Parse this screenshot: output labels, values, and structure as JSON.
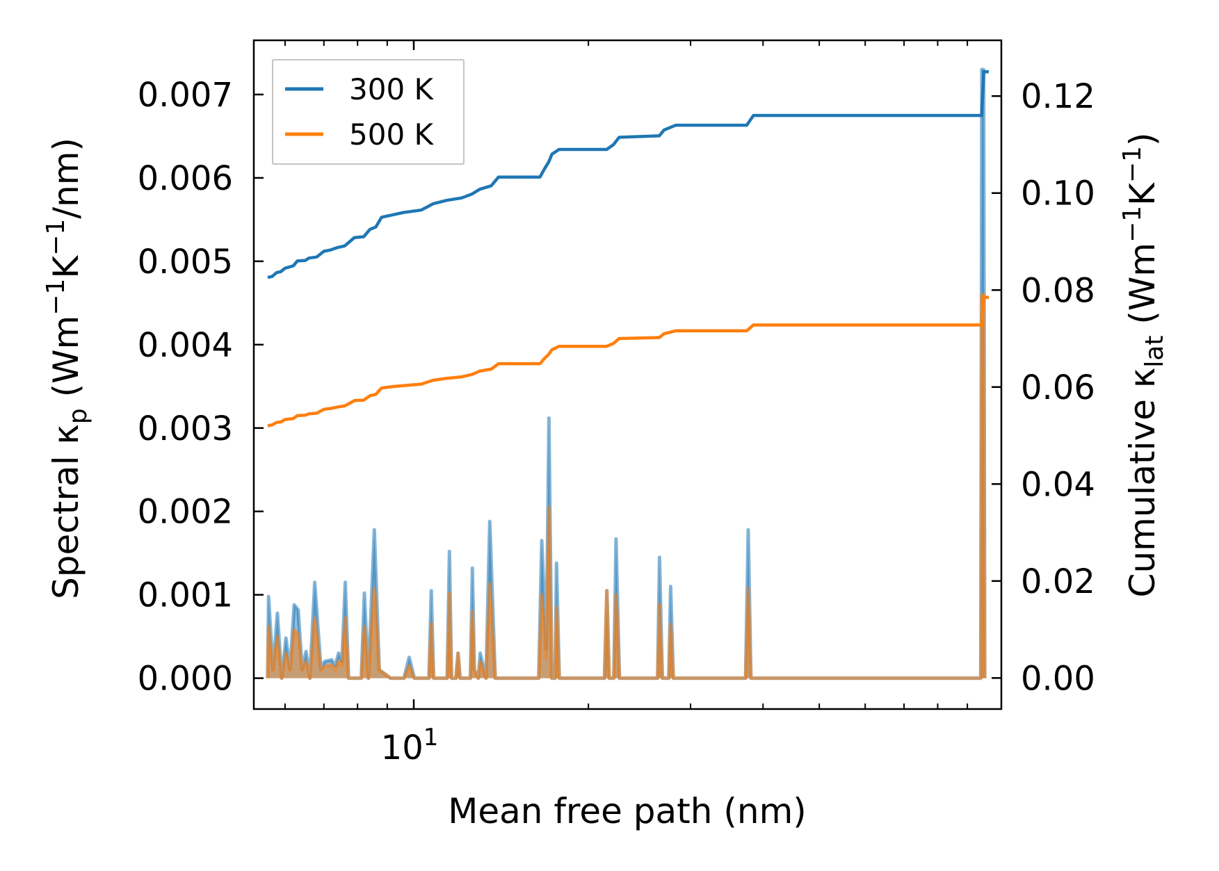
{
  "chart_data": {
    "type": "line",
    "xscale": "log",
    "xlim": [
      5.3,
      103
    ],
    "xlabel": "Mean free path (nm)",
    "x_major_ticks": [
      {
        "value": 10,
        "base": "10",
        "exp": "1"
      }
    ],
    "x_minor_ticks": [
      6,
      7,
      8,
      9,
      20,
      30,
      40,
      50,
      60,
      70,
      80,
      90
    ],
    "left_axis": {
      "label_parts": [
        "Spectral κ",
        "p",
        " (Wm",
        "−1",
        "K",
        "−1",
        "/nm)"
      ],
      "ylim": [
        -0.00037,
        0.00765
      ],
      "ticks": [
        0.0,
        0.001,
        0.002,
        0.003,
        0.004,
        0.005,
        0.006,
        0.007
      ],
      "tick_labels": [
        "0.000",
        "0.001",
        "0.002",
        "0.003",
        "0.004",
        "0.005",
        "0.006",
        "0.007"
      ]
    },
    "right_axis": {
      "label_parts": [
        "Cumulative κ",
        "lat",
        " (Wm",
        "−1",
        "K",
        "−1",
        ")"
      ],
      "ylim": [
        -0.0064,
        0.1315
      ],
      "ticks": [
        0.0,
        0.02,
        0.04,
        0.06,
        0.08,
        0.1,
        0.12
      ],
      "tick_labels": [
        "0.00",
        "0.02",
        "0.04",
        "0.06",
        "0.08",
        "0.10",
        "0.12"
      ]
    },
    "legend": {
      "position": "top-left",
      "entries": [
        "300 K",
        "500 K"
      ]
    },
    "colors": {
      "s300": "#1f77b4",
      "s500": "#ff7f0e",
      "fill300": "#1f77b4",
      "fill500": "#ff7f0e"
    },
    "series": [
      {
        "name": "300 K",
        "axis": "right",
        "kind": "cumulative",
        "color": "#1f77b4",
        "points": [
          [
            5.6,
            0.0826
          ],
          [
            5.7,
            0.0828
          ],
          [
            5.8,
            0.0836
          ],
          [
            5.9,
            0.0838
          ],
          [
            6.0,
            0.0845
          ],
          [
            6.2,
            0.085
          ],
          [
            6.3,
            0.086
          ],
          [
            6.5,
            0.0861
          ],
          [
            6.6,
            0.0866
          ],
          [
            6.8,
            0.0868
          ],
          [
            7.0,
            0.088
          ],
          [
            7.2,
            0.0883
          ],
          [
            7.4,
            0.0888
          ],
          [
            7.6,
            0.0891
          ],
          [
            7.9,
            0.0908
          ],
          [
            8.2,
            0.091
          ],
          [
            8.4,
            0.0925
          ],
          [
            8.6,
            0.093
          ],
          [
            8.8,
            0.095
          ],
          [
            9.2,
            0.0955
          ],
          [
            9.6,
            0.096
          ],
          [
            10.3,
            0.0965
          ],
          [
            10.8,
            0.0978
          ],
          [
            11.4,
            0.0985
          ],
          [
            12.1,
            0.099
          ],
          [
            12.6,
            0.0998
          ],
          [
            13.0,
            0.1008
          ],
          [
            13.6,
            0.1015
          ],
          [
            14.0,
            0.1033
          ],
          [
            16.5,
            0.1033
          ],
          [
            16.8,
            0.105
          ],
          [
            17.1,
            0.1065
          ],
          [
            17.3,
            0.108
          ],
          [
            17.8,
            0.109
          ],
          [
            21.5,
            0.109
          ],
          [
            22.1,
            0.11
          ],
          [
            22.6,
            0.1115
          ],
          [
            26.5,
            0.1118
          ],
          [
            27.0,
            0.113
          ],
          [
            28.3,
            0.114
          ],
          [
            37.5,
            0.114
          ],
          [
            38.5,
            0.116
          ],
          [
            95.3,
            0.116
          ],
          [
            96.0,
            0.125
          ],
          [
            98.0,
            0.125
          ]
        ]
      },
      {
        "name": "500 K",
        "axis": "right",
        "kind": "cumulative",
        "color": "#ff7f0e",
        "points": [
          [
            5.6,
            0.052
          ],
          [
            5.7,
            0.0522
          ],
          [
            5.8,
            0.0527
          ],
          [
            5.9,
            0.0528
          ],
          [
            6.0,
            0.0533
          ],
          [
            6.2,
            0.0535
          ],
          [
            6.3,
            0.0541
          ],
          [
            6.5,
            0.0542
          ],
          [
            6.6,
            0.0545
          ],
          [
            6.8,
            0.0546
          ],
          [
            7.0,
            0.0554
          ],
          [
            7.2,
            0.0556
          ],
          [
            7.4,
            0.0559
          ],
          [
            7.6,
            0.0561
          ],
          [
            7.9,
            0.0572
          ],
          [
            8.2,
            0.0573
          ],
          [
            8.4,
            0.0582
          ],
          [
            8.6,
            0.0585
          ],
          [
            8.8,
            0.0598
          ],
          [
            9.2,
            0.0601
          ],
          [
            9.6,
            0.0603
          ],
          [
            10.3,
            0.0606
          ],
          [
            10.8,
            0.0614
          ],
          [
            11.4,
            0.0618
          ],
          [
            12.1,
            0.0621
          ],
          [
            12.6,
            0.0626
          ],
          [
            13.0,
            0.0633
          ],
          [
            13.6,
            0.0637
          ],
          [
            14.0,
            0.0648
          ],
          [
            16.5,
            0.0648
          ],
          [
            16.8,
            0.0659
          ],
          [
            17.1,
            0.0668
          ],
          [
            17.3,
            0.0677
          ],
          [
            17.8,
            0.0684
          ],
          [
            21.5,
            0.0684
          ],
          [
            22.1,
            0.069
          ],
          [
            22.6,
            0.07
          ],
          [
            26.5,
            0.0702
          ],
          [
            27.0,
            0.071
          ],
          [
            28.3,
            0.0716
          ],
          [
            37.5,
            0.0716
          ],
          [
            38.5,
            0.0728
          ],
          [
            95.3,
            0.0728
          ],
          [
            96.0,
            0.0785
          ],
          [
            98.0,
            0.0785
          ]
        ]
      },
      {
        "name": "300 K spectral",
        "axis": "left",
        "kind": "spectral-fill",
        "color": "#1f77b4",
        "points": [
          [
            5.6,
            0.0
          ],
          [
            5.62,
            0.00098
          ],
          [
            5.72,
            0.0001
          ],
          [
            5.82,
            0.00078
          ],
          [
            5.92,
            0.0
          ],
          [
            6.02,
            0.00048
          ],
          [
            6.12,
            0.0001
          ],
          [
            6.22,
            0.00088
          ],
          [
            6.32,
            0.00082
          ],
          [
            6.42,
            0.0001
          ],
          [
            6.52,
            0.00032
          ],
          [
            6.62,
            0.0
          ],
          [
            6.75,
            0.00115
          ],
          [
            6.92,
            0.0001
          ],
          [
            7.02,
            0.0002
          ],
          [
            7.22,
            0.00022
          ],
          [
            7.32,
            0.00015
          ],
          [
            7.42,
            0.0003
          ],
          [
            7.52,
            0.0002
          ],
          [
            7.62,
            0.00115
          ],
          [
            7.72,
            0.0
          ],
          [
            8.12,
            0.0
          ],
          [
            8.22,
            0.00102
          ],
          [
            8.35,
            0.0
          ],
          [
            8.55,
            0.00178
          ],
          [
            8.72,
            0.0001
          ],
          [
            9.12,
            0.0
          ],
          [
            9.32,
            0.0
          ],
          [
            9.62,
            0.0
          ],
          [
            9.82,
            0.00025
          ],
          [
            10.02,
            0.0
          ],
          [
            10.62,
            0.0
          ],
          [
            10.72,
            0.00105
          ],
          [
            10.82,
            0.0
          ],
          [
            11.42,
            0.0
          ],
          [
            11.52,
            0.00152
          ],
          [
            11.62,
            0.0
          ],
          [
            11.82,
            0.0
          ],
          [
            11.92,
            0.0003
          ],
          [
            12.02,
            0.0
          ],
          [
            12.52,
            0.0
          ],
          [
            12.62,
            0.00132
          ],
          [
            12.72,
            0.0001
          ],
          [
            12.92,
            0.0
          ],
          [
            13.02,
            0.0003
          ],
          [
            13.32,
            0.0
          ],
          [
            13.52,
            0.00188
          ],
          [
            13.82,
            0.0
          ],
          [
            16.42,
            0.0
          ],
          [
            16.62,
            0.00165
          ],
          [
            16.92,
            0.00035
          ],
          [
            17.1,
            0.00312
          ],
          [
            17.3,
            0.0
          ],
          [
            17.52,
            0.0
          ],
          [
            17.62,
            0.00138
          ],
          [
            17.82,
            0.0
          ],
          [
            21.32,
            0.0
          ],
          [
            21.52,
            0.00105
          ],
          [
            21.72,
            0.0
          ],
          [
            22.12,
            0.0
          ],
          [
            22.32,
            0.00167
          ],
          [
            22.62,
            0.0
          ],
          [
            26.32,
            0.0
          ],
          [
            26.52,
            0.00145
          ],
          [
            26.82,
            0.0
          ],
          [
            27.52,
            0.0
          ],
          [
            27.72,
            0.0011
          ],
          [
            28.02,
            0.0
          ],
          [
            37.32,
            0.0
          ],
          [
            37.72,
            0.00178
          ],
          [
            38.12,
            0.0
          ],
          [
            94.92,
            0.0
          ],
          [
            95.32,
            0.0073
          ],
          [
            96.02,
            0.0073
          ],
          [
            96.42,
            0.0
          ]
        ]
      },
      {
        "name": "500 K spectral",
        "axis": "left",
        "kind": "spectral-fill",
        "color": "#ff7f0e",
        "points": [
          [
            5.6,
            0.0
          ],
          [
            5.62,
            0.00062
          ],
          [
            5.72,
            0.0001
          ],
          [
            5.82,
            0.0005
          ],
          [
            5.92,
            0.0
          ],
          [
            6.02,
            0.0003
          ],
          [
            6.12,
            0.0001
          ],
          [
            6.22,
            0.00058
          ],
          [
            6.32,
            0.00052
          ],
          [
            6.42,
            0.0001
          ],
          [
            6.52,
            0.0002
          ],
          [
            6.62,
            0.0
          ],
          [
            6.75,
            0.00072
          ],
          [
            6.92,
            0.0001
          ],
          [
            7.02,
            0.00014
          ],
          [
            7.22,
            0.00016
          ],
          [
            7.32,
            0.0001
          ],
          [
            7.42,
            0.0002
          ],
          [
            7.52,
            0.00015
          ],
          [
            7.62,
            0.00072
          ],
          [
            7.72,
            0.0
          ],
          [
            8.12,
            0.0
          ],
          [
            8.22,
            0.00062
          ],
          [
            8.35,
            0.0
          ],
          [
            8.55,
            0.00108
          ],
          [
            8.72,
            0.0001
          ],
          [
            9.12,
            0.0
          ],
          [
            9.32,
            0.0
          ],
          [
            9.62,
            0.0
          ],
          [
            9.82,
            0.00015
          ],
          [
            10.02,
            0.0
          ],
          [
            10.62,
            0.0
          ],
          [
            10.72,
            0.00065
          ],
          [
            10.82,
            0.0
          ],
          [
            11.42,
            0.0
          ],
          [
            11.52,
            0.00102
          ],
          [
            11.62,
            0.0
          ],
          [
            11.82,
            0.0
          ],
          [
            11.92,
            0.0003
          ],
          [
            12.02,
            0.0
          ],
          [
            12.52,
            0.0
          ],
          [
            12.62,
            0.0008
          ],
          [
            12.72,
            0.0001
          ],
          [
            12.92,
            0.0
          ],
          [
            13.02,
            0.0002
          ],
          [
            13.32,
            0.0
          ],
          [
            13.52,
            0.00113
          ],
          [
            13.82,
            0.0
          ],
          [
            16.42,
            0.0
          ],
          [
            16.62,
            0.001
          ],
          [
            16.92,
            0.00025
          ],
          [
            17.1,
            0.00205
          ],
          [
            17.3,
            0.0
          ],
          [
            17.52,
            0.0
          ],
          [
            17.62,
            0.00085
          ],
          [
            17.82,
            0.0
          ],
          [
            21.32,
            0.0
          ],
          [
            21.52,
            0.00105
          ],
          [
            21.72,
            0.0
          ],
          [
            22.12,
            0.0
          ],
          [
            22.32,
            0.001
          ],
          [
            22.62,
            0.0
          ],
          [
            26.32,
            0.0
          ],
          [
            26.52,
            0.00088
          ],
          [
            26.82,
            0.0
          ],
          [
            27.52,
            0.0
          ],
          [
            27.72,
            0.00065
          ],
          [
            28.02,
            0.0
          ],
          [
            37.32,
            0.0
          ],
          [
            37.72,
            0.00108
          ],
          [
            38.12,
            0.0
          ],
          [
            94.92,
            0.0
          ],
          [
            95.32,
            0.0046
          ],
          [
            96.02,
            0.0046
          ],
          [
            96.42,
            0.0
          ]
        ]
      }
    ]
  }
}
